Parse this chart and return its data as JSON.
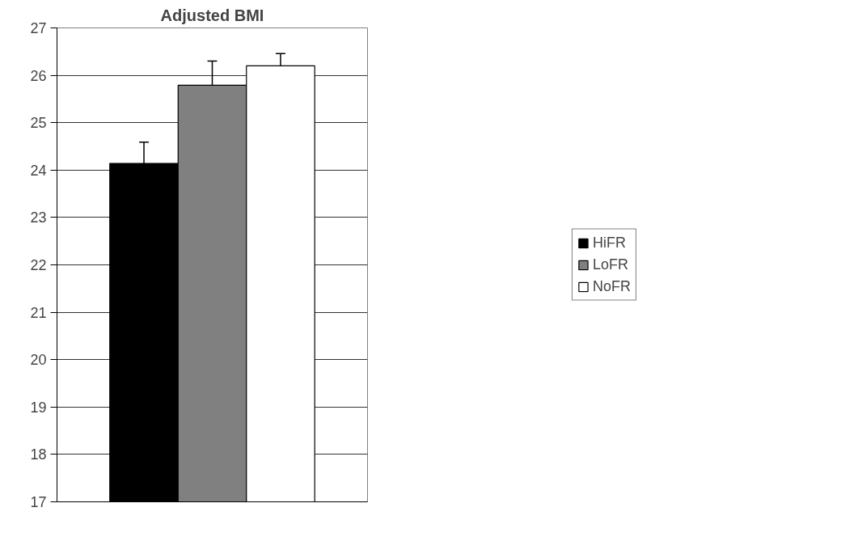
{
  "chart_data": {
    "type": "bar",
    "title": "Adjusted BMI",
    "categories": [
      null
    ],
    "series": [
      {
        "name": "HiFR",
        "color": "#000000",
        "values": [
          24.14
        ],
        "errors": [
          [
            24.14,
            24.59
          ]
        ]
      },
      {
        "name": "LoFR",
        "color": "#808080",
        "values": [
          25.79
        ],
        "errors": [
          [
            25.79,
            26.3
          ]
        ]
      },
      {
        "name": "NoFR",
        "color": "#ffffff",
        "values": [
          26.2
        ],
        "errors": [
          [
            26.2,
            26.46
          ]
        ]
      }
    ],
    "ylim": [
      17,
      27
    ],
    "yticks": [
      17,
      18,
      19,
      20,
      21,
      22,
      23,
      24,
      25,
      26,
      27
    ],
    "grid": "y",
    "legend": "right"
  }
}
